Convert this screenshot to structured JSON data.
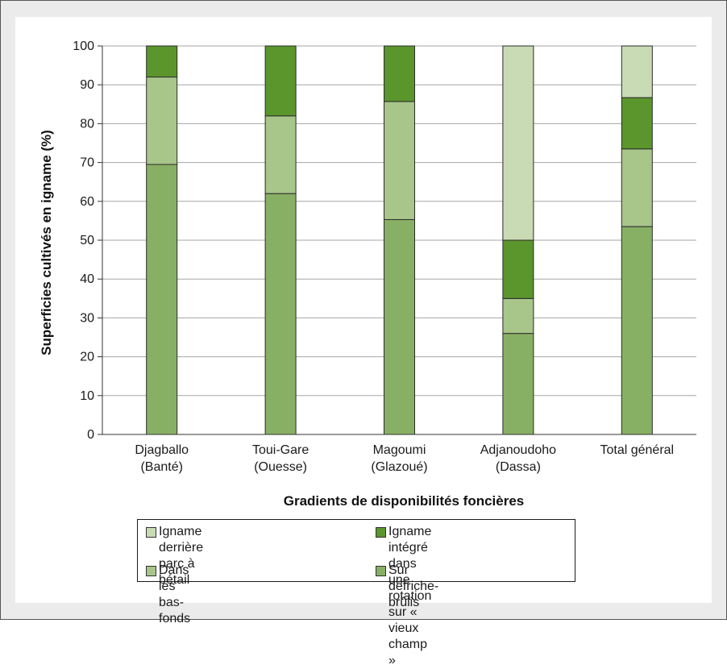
{
  "chart_data": {
    "type": "bar",
    "stacked": true,
    "title": "",
    "xlabel": "Gradients de disponibilités foncières",
    "ylabel": "Superficies cultivés en igname (%)",
    "ylim": [
      0,
      100
    ],
    "yticks": [
      "0",
      "10",
      "20",
      "30",
      "40",
      "50",
      "60",
      "70",
      "80",
      "90",
      "100"
    ],
    "grid": true,
    "legend_position": "bottom",
    "categories": [
      [
        "Djagballo",
        "(Banté)"
      ],
      [
        "Toui-Gare",
        "(Ouesse)"
      ],
      [
        "Magoumi",
        "(Glazoué)"
      ],
      [
        "Adjanoudoho",
        "(Dassa)"
      ],
      [
        "Total général"
      ]
    ],
    "series": [
      {
        "name": "Sur défriche-brûlis",
        "color": "#88b064",
        "values": [
          69.5,
          62,
          55.3,
          26,
          53.5
        ]
      },
      {
        "name": "Dans les bas-fonds",
        "color": "#a8c58a",
        "values": [
          22.5,
          20,
          30.4,
          9,
          20
        ]
      },
      {
        "name": "Igname intégré dans une rotation sur « vieux champ »",
        "color": "#5a962c",
        "values": [
          8,
          18,
          14.3,
          15,
          13.2
        ]
      },
      {
        "name": "Igname derrière parc à bétail",
        "color": "#c9dbb5",
        "values": [
          0,
          0,
          0,
          50,
          13.3
        ]
      }
    ]
  },
  "legend": {
    "items": [
      {
        "label": "Igname derrière parc à bétail",
        "color": "#c9dbb5"
      },
      {
        "label": "Igname intégré dans une rotation\nsur « vieux champ »",
        "color": "#5a962c"
      },
      {
        "label": "Dans les bas-fonds",
        "color": "#a8c58a"
      },
      {
        "label": "Sur défriche-brûlis",
        "color": "#88b064"
      }
    ]
  }
}
